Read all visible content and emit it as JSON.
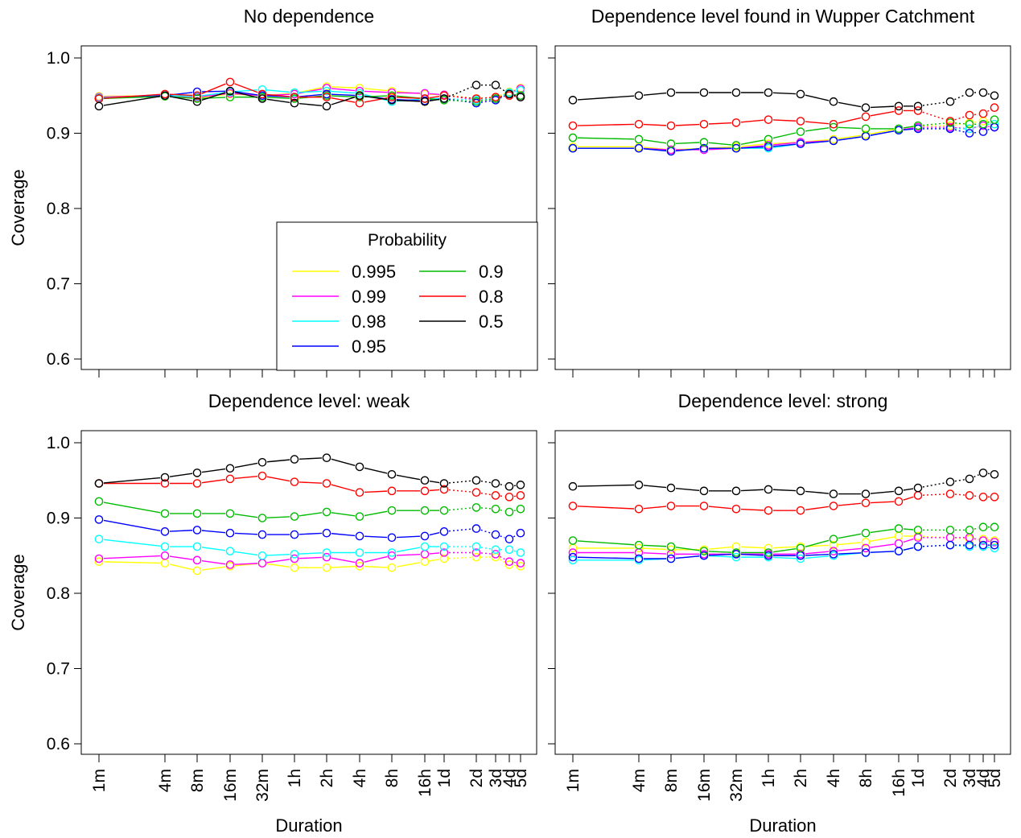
{
  "figure": {
    "legend": {
      "title": "Probability",
      "placement": "top-left panel, lower right",
      "entries": [
        {
          "label": "0.995",
          "color": "#ffff00"
        },
        {
          "label": "0.99",
          "color": "#ff00ff"
        },
        {
          "label": "0.98",
          "color": "#00ffff"
        },
        {
          "label": "0.95",
          "color": "#0000ff"
        },
        {
          "label": "0.9",
          "color": "#00bb00"
        },
        {
          "label": "0.8",
          "color": "#ff0000"
        },
        {
          "label": "0.5",
          "color": "#000000"
        }
      ]
    }
  },
  "chart_data": [
    {
      "type": "line",
      "title": "No dependence",
      "xlabel": "",
      "ylabel": "Coverage",
      "ylim": [
        0.6,
        1.0
      ],
      "yticks": [
        "0.6",
        "0.7",
        "0.8",
        "0.9",
        "1.0"
      ],
      "x": [
        "1m",
        "4m",
        "8m",
        "16m",
        "32m",
        "1h",
        "2h",
        "4h",
        "8h",
        "16h",
        "1d",
        "2d",
        "3d",
        "4d",
        "5d"
      ],
      "xtick_labels_shown": false,
      "series": [
        {
          "name": "0.995",
          "color": "#ffff00",
          "values": [
            0.949,
            0.95,
            0.947,
            0.952,
            0.95,
            0.953,
            0.962,
            0.96,
            0.956,
            0.952,
            0.951,
            0.946,
            0.948,
            0.955,
            0.96
          ]
        },
        {
          "name": "0.99",
          "color": "#ff00ff",
          "values": [
            0.948,
            0.95,
            0.948,
            0.953,
            0.95,
            0.952,
            0.96,
            0.956,
            0.954,
            0.953,
            0.951,
            0.944,
            0.946,
            0.954,
            0.959
          ]
        },
        {
          "name": "0.98",
          "color": "#00ffff",
          "values": [
            0.947,
            0.95,
            0.949,
            0.955,
            0.958,
            0.954,
            0.956,
            0.953,
            0.942,
            0.946,
            0.946,
            0.944,
            0.946,
            0.954,
            0.957
          ]
        },
        {
          "name": "0.95",
          "color": "#0000ff",
          "values": [
            0.946,
            0.95,
            0.955,
            0.956,
            0.95,
            0.948,
            0.952,
            0.95,
            0.945,
            0.943,
            0.946,
            0.94,
            0.944,
            0.952,
            0.95
          ]
        },
        {
          "name": "0.9",
          "color": "#00bb00",
          "values": [
            0.946,
            0.949,
            0.946,
            0.948,
            0.948,
            0.946,
            0.95,
            0.948,
            0.95,
            0.946,
            0.944,
            0.942,
            0.946,
            0.952,
            0.95
          ]
        },
        {
          "name": "0.8",
          "color": "#ff0000",
          "values": [
            0.946,
            0.952,
            0.95,
            0.968,
            0.952,
            0.948,
            0.948,
            0.94,
            0.948,
            0.946,
            0.95,
            0.946,
            0.948,
            0.95,
            0.948
          ]
        },
        {
          "name": "0.5",
          "color": "#000000",
          "values": [
            0.936,
            0.95,
            0.942,
            0.956,
            0.946,
            0.94,
            0.936,
            0.95,
            0.944,
            0.942,
            0.946,
            0.964,
            0.964,
            0.952,
            0.948
          ]
        }
      ]
    },
    {
      "type": "line",
      "title": "Dependence level found in Wupper Catchment",
      "xlabel": "",
      "ylabel": "",
      "ylim": [
        0.6,
        1.0
      ],
      "x": [
        "1m",
        "4m",
        "8m",
        "16m",
        "32m",
        "1h",
        "2h",
        "4h",
        "8h",
        "16h",
        "1d",
        "2d",
        "3d",
        "4d",
        "5d"
      ],
      "xtick_labels_shown": false,
      "ytick_labels_shown": false,
      "series": [
        {
          "name": "0.995",
          "color": "#ffff00",
          "values": [
            0.882,
            0.882,
            0.878,
            0.88,
            0.882,
            0.886,
            0.888,
            0.892,
            0.898,
            0.906,
            0.91,
            0.91,
            0.914,
            0.916,
            0.912
          ]
        },
        {
          "name": "0.99",
          "color": "#ff00ff",
          "values": [
            0.88,
            0.88,
            0.878,
            0.878,
            0.88,
            0.884,
            0.888,
            0.89,
            0.896,
            0.904,
            0.908,
            0.908,
            0.906,
            0.91,
            0.908
          ]
        },
        {
          "name": "0.98",
          "color": "#00ffff",
          "values": [
            0.88,
            0.88,
            0.876,
            0.88,
            0.88,
            0.88,
            0.886,
            0.89,
            0.896,
            0.904,
            0.906,
            0.906,
            0.906,
            0.912,
            0.912
          ]
        },
        {
          "name": "0.95",
          "color": "#0000ff",
          "values": [
            0.88,
            0.88,
            0.876,
            0.88,
            0.88,
            0.882,
            0.886,
            0.89,
            0.896,
            0.904,
            0.906,
            0.906,
            0.9,
            0.902,
            0.908
          ]
        },
        {
          "name": "0.9",
          "color": "#00bb00",
          "values": [
            0.894,
            0.892,
            0.886,
            0.888,
            0.884,
            0.892,
            0.902,
            0.908,
            0.906,
            0.906,
            0.91,
            0.914,
            0.912,
            0.912,
            0.918
          ]
        },
        {
          "name": "0.8",
          "color": "#ff0000",
          "values": [
            0.91,
            0.912,
            0.91,
            0.912,
            0.914,
            0.918,
            0.916,
            0.912,
            0.922,
            0.93,
            0.93,
            0.916,
            0.924,
            0.926,
            0.934
          ]
        },
        {
          "name": "0.5",
          "color": "#000000",
          "values": [
            0.944,
            0.95,
            0.954,
            0.954,
            0.954,
            0.954,
            0.952,
            0.942,
            0.934,
            0.936,
            0.936,
            0.942,
            0.954,
            0.954,
            0.95
          ]
        }
      ]
    },
    {
      "type": "line",
      "title": "Dependence level: weak",
      "xlabel": "Duration",
      "ylabel": "Coverage",
      "ylim": [
        0.6,
        1.0
      ],
      "yticks": [
        "0.6",
        "0.7",
        "0.8",
        "0.9",
        "1.0"
      ],
      "x": [
        "1m",
        "4m",
        "8m",
        "16m",
        "32m",
        "1h",
        "2h",
        "4h",
        "8h",
        "16h",
        "1d",
        "2d",
        "3d",
        "4d",
        "5d"
      ],
      "xtick_labels_shown": true,
      "series": [
        {
          "name": "0.995",
          "color": "#ffff00",
          "values": [
            0.842,
            0.84,
            0.83,
            0.836,
            0.84,
            0.834,
            0.834,
            0.836,
            0.834,
            0.842,
            0.846,
            0.848,
            0.848,
            0.838,
            0.836
          ]
        },
        {
          "name": "0.99",
          "color": "#ff00ff",
          "values": [
            0.846,
            0.85,
            0.844,
            0.838,
            0.84,
            0.846,
            0.848,
            0.84,
            0.85,
            0.852,
            0.854,
            0.854,
            0.852,
            0.842,
            0.84
          ]
        },
        {
          "name": "0.98",
          "color": "#00ffff",
          "values": [
            0.872,
            0.862,
            0.862,
            0.856,
            0.85,
            0.852,
            0.854,
            0.854,
            0.854,
            0.862,
            0.862,
            0.862,
            0.858,
            0.858,
            0.854
          ]
        },
        {
          "name": "0.95",
          "color": "#0000ff",
          "values": [
            0.898,
            0.882,
            0.884,
            0.88,
            0.878,
            0.878,
            0.88,
            0.876,
            0.874,
            0.876,
            0.882,
            0.886,
            0.878,
            0.872,
            0.88
          ]
        },
        {
          "name": "0.9",
          "color": "#00bb00",
          "values": [
            0.922,
            0.906,
            0.906,
            0.906,
            0.9,
            0.902,
            0.908,
            0.902,
            0.91,
            0.91,
            0.91,
            0.914,
            0.912,
            0.908,
            0.912
          ]
        },
        {
          "name": "0.8",
          "color": "#ff0000",
          "values": [
            0.946,
            0.946,
            0.946,
            0.952,
            0.956,
            0.948,
            0.946,
            0.934,
            0.936,
            0.936,
            0.938,
            0.934,
            0.93,
            0.928,
            0.93
          ]
        },
        {
          "name": "0.5",
          "color": "#000000",
          "values": [
            0.946,
            0.954,
            0.96,
            0.966,
            0.974,
            0.978,
            0.98,
            0.968,
            0.958,
            0.95,
            0.946,
            0.95,
            0.946,
            0.942,
            0.944
          ]
        }
      ]
    },
    {
      "type": "line",
      "title": "Dependence level: strong",
      "xlabel": "Duration",
      "ylabel": "",
      "ylim": [
        0.6,
        1.0
      ],
      "x": [
        "1m",
        "4m",
        "8m",
        "16m",
        "32m",
        "1h",
        "2h",
        "4h",
        "8h",
        "16h",
        "1d",
        "2d",
        "3d",
        "4d",
        "5d"
      ],
      "xtick_labels_shown": true,
      "ytick_labels_shown": false,
      "series": [
        {
          "name": "0.995",
          "color": "#ffff00",
          "values": [
            0.86,
            0.86,
            0.858,
            0.858,
            0.862,
            0.86,
            0.862,
            0.864,
            0.868,
            0.876,
            0.876,
            0.874,
            0.872,
            0.872,
            0.87
          ]
        },
        {
          "name": "0.99",
          "color": "#ff00ff",
          "values": [
            0.854,
            0.854,
            0.852,
            0.852,
            0.852,
            0.852,
            0.852,
            0.856,
            0.86,
            0.866,
            0.874,
            0.874,
            0.874,
            0.87,
            0.868
          ]
        },
        {
          "name": "0.98",
          "color": "#00ffff",
          "values": [
            0.844,
            0.844,
            0.846,
            0.85,
            0.848,
            0.848,
            0.846,
            0.85,
            0.854,
            0.856,
            0.862,
            0.864,
            0.862,
            0.862,
            0.86
          ]
        },
        {
          "name": "0.95",
          "color": "#0000ff",
          "values": [
            0.848,
            0.846,
            0.846,
            0.85,
            0.852,
            0.85,
            0.85,
            0.852,
            0.854,
            0.856,
            0.862,
            0.864,
            0.864,
            0.864,
            0.864
          ]
        },
        {
          "name": "0.9",
          "color": "#00bb00",
          "values": [
            0.87,
            0.864,
            0.862,
            0.856,
            0.854,
            0.854,
            0.86,
            0.872,
            0.88,
            0.886,
            0.884,
            0.884,
            0.884,
            0.888,
            0.888
          ]
        },
        {
          "name": "0.8",
          "color": "#ff0000",
          "values": [
            0.916,
            0.912,
            0.916,
            0.916,
            0.912,
            0.91,
            0.91,
            0.916,
            0.92,
            0.922,
            0.93,
            0.932,
            0.93,
            0.928,
            0.928
          ]
        },
        {
          "name": "0.5",
          "color": "#000000",
          "values": [
            0.942,
            0.944,
            0.94,
            0.936,
            0.936,
            0.938,
            0.936,
            0.932,
            0.932,
            0.936,
            0.94,
            0.948,
            0.952,
            0.96,
            0.958
          ]
        }
      ]
    }
  ]
}
